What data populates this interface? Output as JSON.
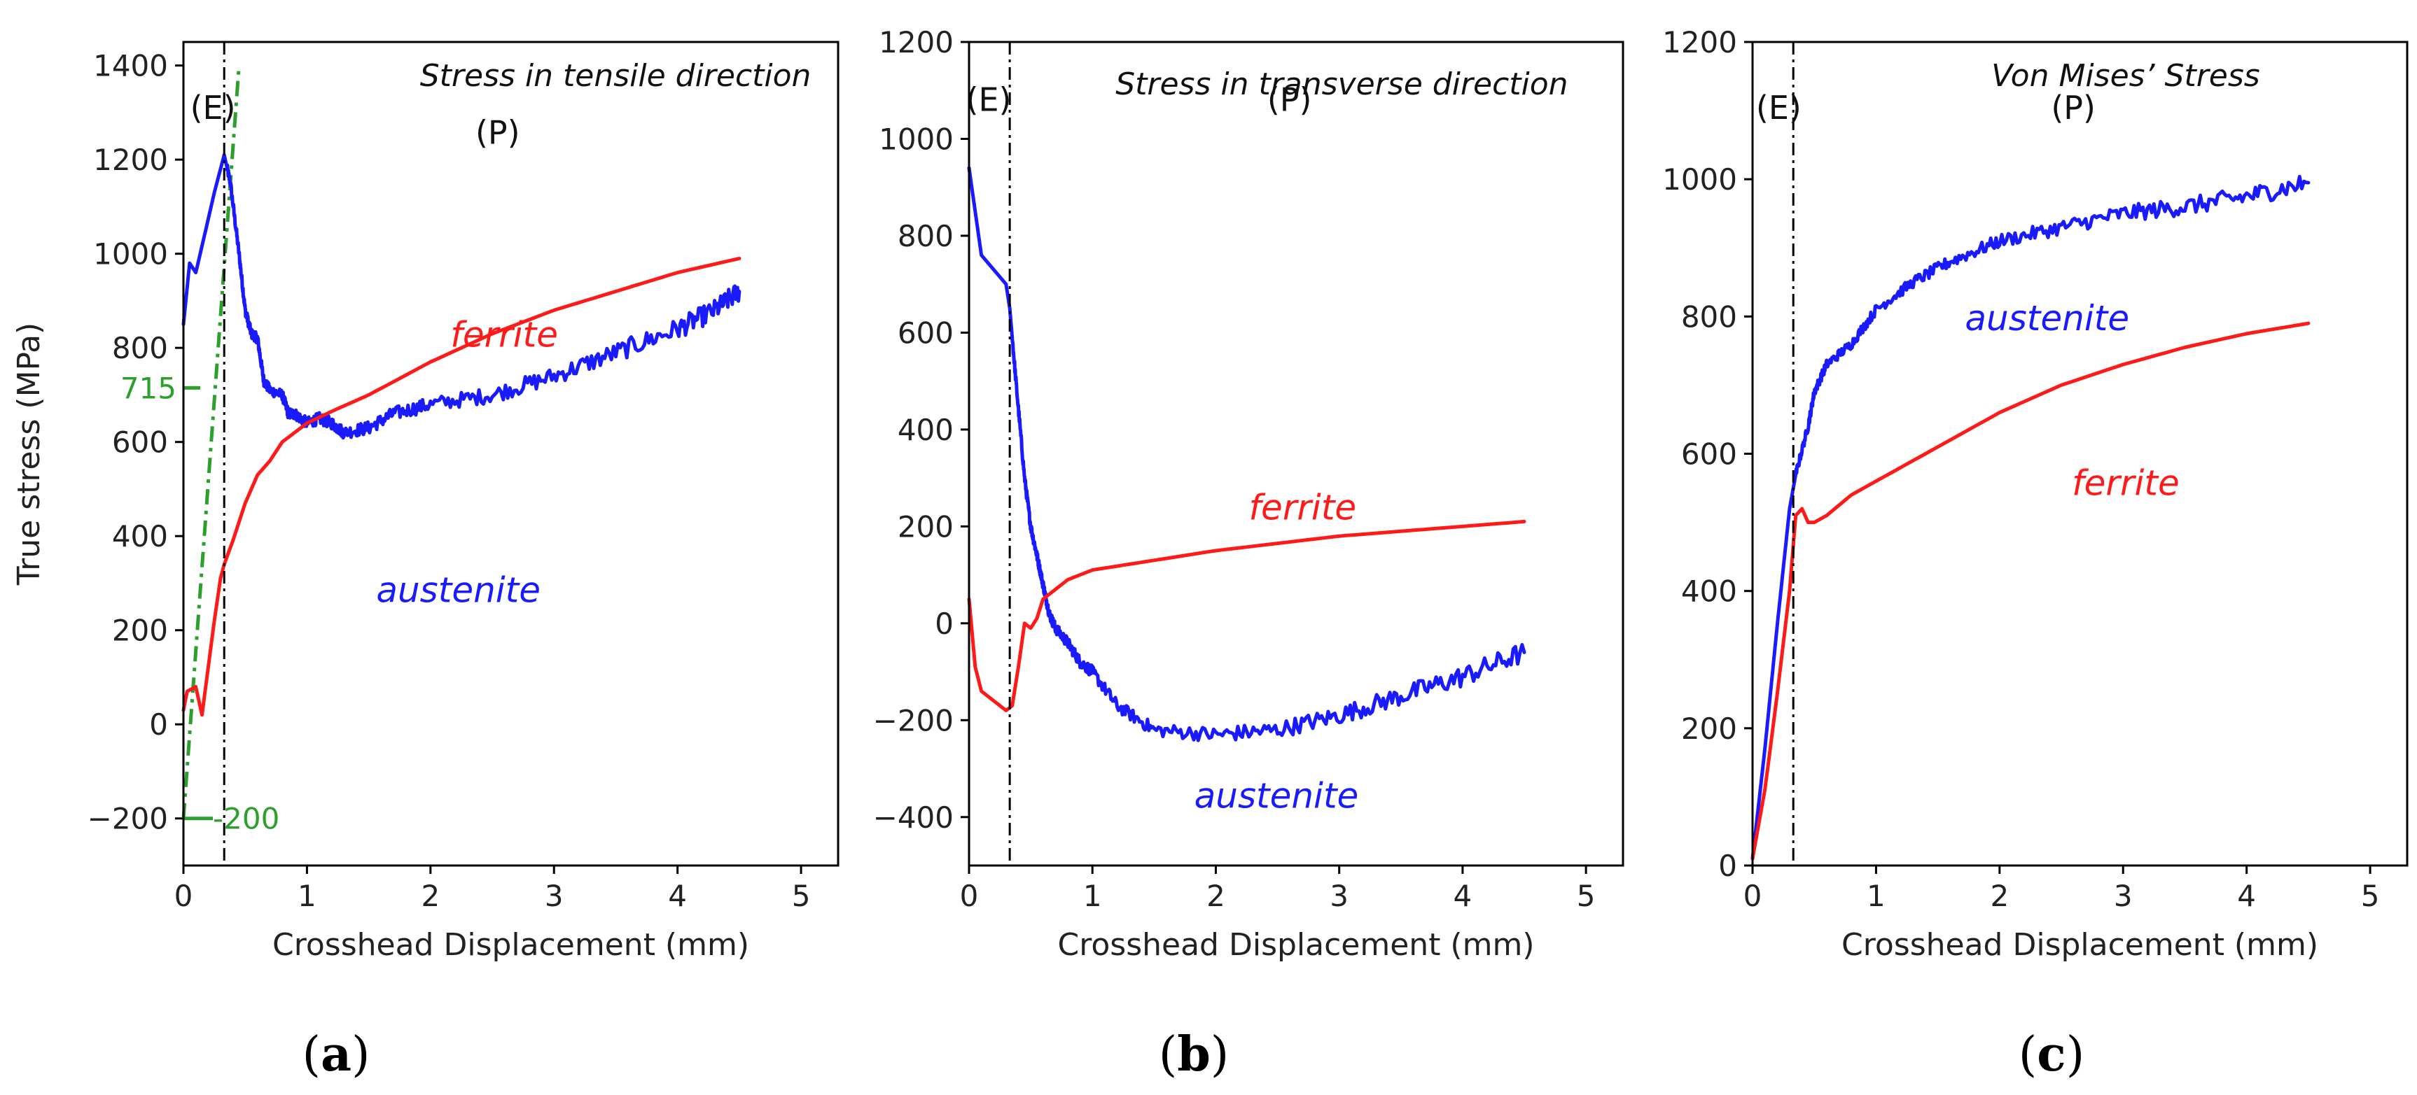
{
  "figure": {
    "xlabel": "Crosshead Displacement (mm)",
    "ylabel": "True stress (MPa)",
    "colors": {
      "austenite": "#1a1aff",
      "ferrite": "#ff1a1a",
      "annotation": "#2ca02c",
      "axis": "#000000"
    }
  },
  "chart_data": [
    {
      "type": "line",
      "sub_label_paren_open": "(",
      "sub_label_letter": "a",
      "sub_label_paren_close": ")",
      "title": "Stress in tensile direction",
      "xlabel": "Crosshead Displacement (mm)",
      "ylabel": "True stress (MPa)",
      "xlim": [
        0,
        5.3
      ],
      "ylim": [
        -300,
        1450
      ],
      "xticks": [
        0,
        1,
        2,
        3,
        4,
        5
      ],
      "xtick_labels": [
        "0",
        "1",
        "2",
        "3",
        "4",
        "5"
      ],
      "yticks": [
        -200,
        0,
        200,
        400,
        600,
        800,
        1000,
        1200,
        1400
      ],
      "ytick_labels": [
        "−200",
        "0",
        "200",
        "400",
        "600",
        "800",
        "1000",
        "1200",
        "1400"
      ],
      "vline_x": 0.33,
      "region_labels": {
        "elastic": "(E)",
        "plastic": "(P)"
      },
      "series": [
        {
          "name": "austenite",
          "label": "austenite",
          "color": "#1a1aff",
          "noise": 22,
          "x": [
            0,
            0.05,
            0.1,
            0.18,
            0.25,
            0.3,
            0.33,
            0.38,
            0.45,
            0.5,
            0.55,
            0.6,
            0.65,
            0.7,
            0.8,
            0.85,
            0.9,
            1.0,
            1.1,
            1.2,
            1.3,
            1.5,
            1.7,
            2.0,
            2.5,
            3.0,
            3.5,
            4.0,
            4.3,
            4.5
          ],
          "y": [
            850,
            980,
            960,
            1050,
            1130,
            1180,
            1210,
            1150,
            1000,
            880,
            830,
            820,
            730,
            710,
            700,
            660,
            660,
            640,
            650,
            640,
            620,
            630,
            660,
            680,
            700,
            740,
            790,
            840,
            880,
            920
          ]
        },
        {
          "name": "ferrite",
          "label": "ferrite",
          "color": "#ff1a1a",
          "noise": 0,
          "x": [
            0,
            0.03,
            0.1,
            0.15,
            0.2,
            0.25,
            0.3,
            0.33,
            0.4,
            0.45,
            0.5,
            0.55,
            0.6,
            0.7,
            0.8,
            0.9,
            1.0,
            1.2,
            1.5,
            2.0,
            2.5,
            3.0,
            3.5,
            4.0,
            4.5
          ],
          "y": [
            30,
            70,
            80,
            20,
            120,
            220,
            310,
            340,
            390,
            430,
            470,
            500,
            530,
            560,
            600,
            620,
            640,
            665,
            700,
            770,
            830,
            880,
            920,
            960,
            990
          ]
        }
      ],
      "elastic_fit_line": {
        "x": [
          0,
          0.45
        ],
        "y": [
          -200,
          1400
        ]
      },
      "annotations": [
        {
          "text": "715",
          "x": 0.0,
          "y": 715,
          "color": "#2ca02c"
        },
        {
          "text": "-200",
          "x": 0.0,
          "y": -200,
          "color": "#2ca02c"
        }
      ]
    },
    {
      "type": "line",
      "sub_label_paren_open": "(",
      "sub_label_letter": "b",
      "sub_label_paren_close": ")",
      "title": "Stress in transverse direction",
      "xlabel": "Crosshead Displacement (mm)",
      "xlim": [
        0,
        5.3
      ],
      "ylim": [
        -500,
        1200
      ],
      "xticks": [
        0,
        1,
        2,
        3,
        4,
        5
      ],
      "xtick_labels": [
        "0",
        "1",
        "2",
        "3",
        "4",
        "5"
      ],
      "yticks": [
        -400,
        -200,
        0,
        200,
        400,
        600,
        800,
        1000,
        1200
      ],
      "ytick_labels": [
        "−400",
        "−200",
        "0",
        "200",
        "400",
        "600",
        "800",
        "1000",
        "1200"
      ],
      "vline_x": 0.33,
      "region_labels": {
        "elastic": "(E)",
        "plastic": "(P)"
      },
      "series": [
        {
          "name": "austenite",
          "label": "austenite",
          "color": "#1a1aff",
          "noise": 22,
          "x": [
            0,
            0.1,
            0.2,
            0.3,
            0.33,
            0.38,
            0.45,
            0.5,
            0.55,
            0.6,
            0.65,
            0.7,
            0.8,
            0.9,
            1.0,
            1.2,
            1.5,
            2.0,
            2.5,
            3.0,
            3.5,
            4.0,
            4.5
          ],
          "y": [
            940,
            760,
            730,
            700,
            650,
            500,
            300,
            200,
            140,
            80,
            20,
            -10,
            -40,
            -80,
            -100,
            -170,
            -220,
            -230,
            -220,
            -190,
            -150,
            -110,
            -60
          ]
        },
        {
          "name": "ferrite",
          "label": "ferrite",
          "color": "#ff1a1a",
          "noise": 0,
          "x": [
            0,
            0.05,
            0.1,
            0.2,
            0.3,
            0.35,
            0.4,
            0.45,
            0.5,
            0.55,
            0.6,
            0.7,
            0.8,
            1.0,
            1.5,
            2.0,
            2.5,
            3.0,
            3.5,
            4.0,
            4.5
          ],
          "y": [
            50,
            -90,
            -140,
            -160,
            -180,
            -170,
            -90,
            0,
            -10,
            10,
            50,
            70,
            90,
            110,
            130,
            150,
            165,
            180,
            190,
            200,
            210
          ]
        }
      ]
    },
    {
      "type": "line",
      "sub_label_paren_open": "(",
      "sub_label_letter": "c",
      "sub_label_paren_close": ")",
      "title": "Von Mises’ Stress",
      "xlabel": "Crosshead Displacement (mm)",
      "xlim": [
        0,
        5.3
      ],
      "ylim": [
        0,
        1200
      ],
      "xticks": [
        0,
        1,
        2,
        3,
        4,
        5
      ],
      "xtick_labels": [
        "0",
        "1",
        "2",
        "3",
        "4",
        "5"
      ],
      "yticks": [
        0,
        200,
        400,
        600,
        800,
        1000,
        1200
      ],
      "ytick_labels": [
        "0",
        "200",
        "400",
        "600",
        "800",
        "1000",
        "1200"
      ],
      "vline_x": 0.33,
      "region_labels": {
        "elastic": "(E)",
        "plastic": "(P)"
      },
      "series": [
        {
          "name": "austenite",
          "label": "austenite",
          "color": "#1a1aff",
          "noise": 14,
          "x": [
            0,
            0.1,
            0.2,
            0.3,
            0.35,
            0.45,
            0.5,
            0.6,
            0.8,
            1.0,
            1.3,
            1.6,
            2.0,
            2.5,
            3.0,
            3.5,
            4.0,
            4.5
          ],
          "y": [
            10,
            170,
            350,
            520,
            570,
            640,
            690,
            730,
            760,
            810,
            850,
            880,
            910,
            930,
            950,
            960,
            975,
            995
          ]
        },
        {
          "name": "ferrite",
          "label": "ferrite",
          "color": "#ff1a1a",
          "noise": 0,
          "x": [
            0,
            0.1,
            0.2,
            0.3,
            0.35,
            0.4,
            0.45,
            0.5,
            0.6,
            0.8,
            1.0,
            1.5,
            2.0,
            2.5,
            3.0,
            3.5,
            4.0,
            4.5
          ],
          "y": [
            10,
            110,
            250,
            400,
            510,
            520,
            500,
            500,
            510,
            540,
            560,
            610,
            660,
            700,
            730,
            755,
            775,
            790
          ]
        }
      ]
    }
  ]
}
